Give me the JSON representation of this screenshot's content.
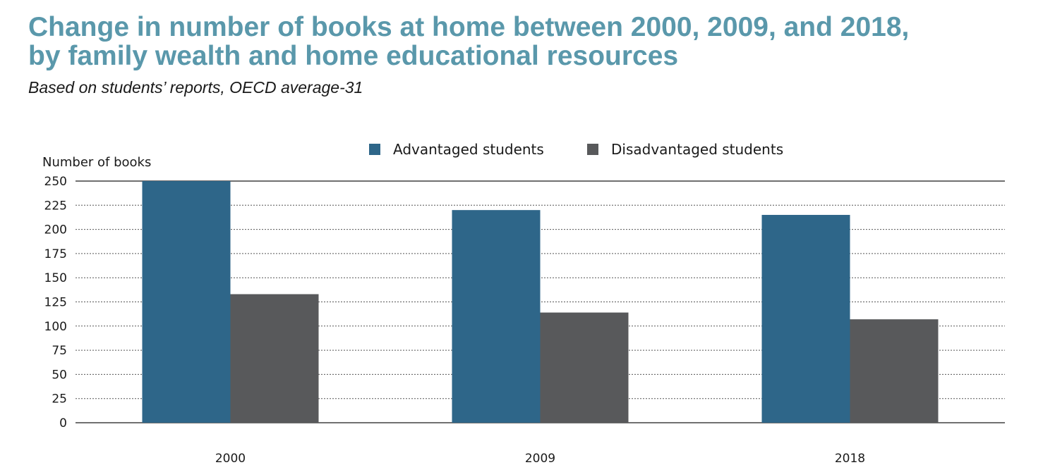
{
  "header": {
    "title_line1": "Change in number of books at home between 2000, 2009, and 2018,",
    "title_line2": "by family wealth and home educational resources",
    "subtitle": "Based on students’ reports, OECD average-31"
  },
  "chart_data": {
    "type": "bar",
    "categories": [
      "2000",
      "2009",
      "2018"
    ],
    "series": [
      {
        "name": "Advantaged students",
        "values": [
          250,
          220,
          215
        ],
        "color": "#2e6689"
      },
      {
        "name": "Disadvantaged students",
        "values": [
          133,
          114,
          107
        ],
        "color": "#58595b"
      }
    ],
    "ylabel": "Number of books",
    "xlabel": "",
    "ylim": [
      0,
      250
    ],
    "yticks": [
      0,
      25,
      50,
      75,
      100,
      125,
      150,
      175,
      200,
      225,
      250
    ],
    "grid": true,
    "legend_position": "top-center"
  }
}
